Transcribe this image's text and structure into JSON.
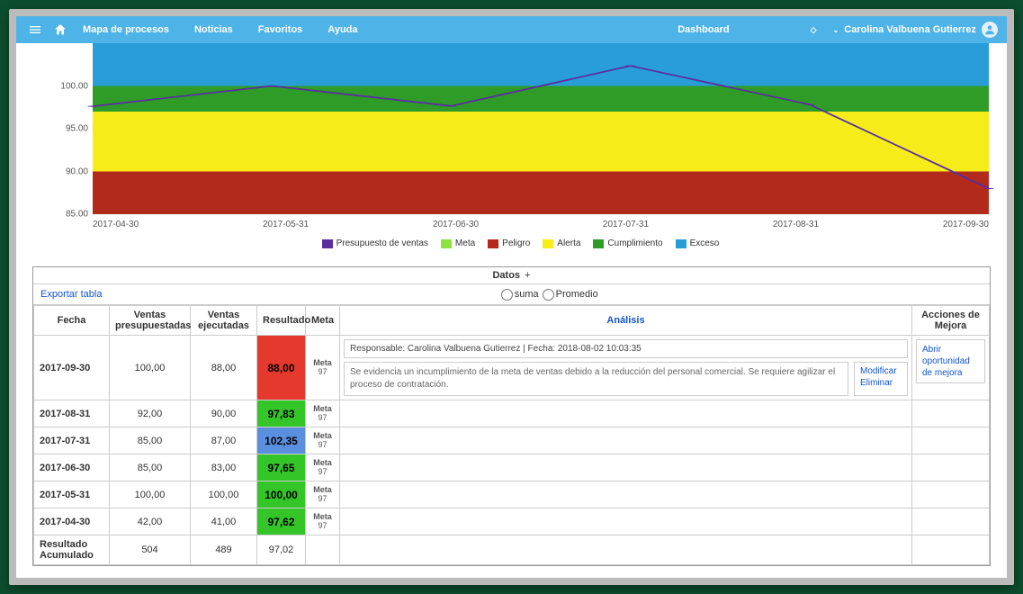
{
  "nav": {
    "links": [
      "Mapa de procesos",
      "Noticias",
      "Favoritos",
      "Ayuda"
    ],
    "select": "Dashboard",
    "user": "Carolina Valbuena Gutierrez"
  },
  "chart": {
    "type": "line-with-bands",
    "y": {
      "ticks": [
        85,
        90,
        95,
        100
      ],
      "min": 85,
      "max": 105
    },
    "x_labels": [
      "2017-04-30",
      "2017-05-31",
      "2017-06-30",
      "2017-07-31",
      "2017-08-31",
      "2017-09-30"
    ],
    "line": {
      "name": "Presupuesto de ventas",
      "color": "#5a2e9f",
      "values": [
        97.62,
        100.0,
        97.65,
        102.35,
        97.83,
        88.0
      ]
    },
    "bands": [
      {
        "name": "Peligro",
        "from": 85,
        "to": 90,
        "color": "#b22a1c"
      },
      {
        "name": "Alerta",
        "from": 90,
        "to": 97,
        "color": "#f6ec1a"
      },
      {
        "name": "Cumplimiento",
        "from": 97,
        "to": 100,
        "color": "#2e9c27"
      },
      {
        "name": "Exceso",
        "from": 100,
        "to": 105,
        "color": "#289dd8"
      }
    ],
    "legend": [
      {
        "label": "Presupuesto de ventas",
        "color": "#5a2e9f"
      },
      {
        "label": "Meta",
        "color": "#8ee340"
      },
      {
        "label": "Peligro",
        "color": "#b22a1c"
      },
      {
        "label": "Alerta",
        "color": "#f6ec1a"
      },
      {
        "label": "Cumplimiento",
        "color": "#2e9c27"
      },
      {
        "label": "Exceso",
        "color": "#289dd8"
      }
    ]
  },
  "table": {
    "title": "Datos",
    "export": "Exportar tabla",
    "radio_suma": "suma",
    "radio_prom": "Promedio",
    "columns": [
      "Fecha",
      "Ventas presupuestadas",
      "Ventas ejecutadas",
      "Resultado",
      "Meta",
      "Análisis",
      "Acciones de Mejora"
    ],
    "rows": [
      {
        "fecha": "2017-09-30",
        "vp": "100,00",
        "ve": "88,00",
        "res": "88,00",
        "res_bg": "#e6392d",
        "meta_label": "Meta",
        "meta_val": "97",
        "responsable": "Responsable: Carolina Valbuena Gutierrez | Fecha: 2018-08-02 10:03:35",
        "texto": "Se evidencia un incumplimiento de la meta de ventas debido a la reducción del personal comercial. Se requiere agilizar el proceso de contratación.",
        "mod": "Modificar",
        "elim": "Eliminar",
        "accion": "Abrir oportunidad de mejora"
      },
      {
        "fecha": "2017-08-31",
        "vp": "92,00",
        "ve": "90,00",
        "res": "97,83",
        "res_bg": "#34c628",
        "meta_label": "Meta",
        "meta_val": "97"
      },
      {
        "fecha": "2017-07-31",
        "vp": "85,00",
        "ve": "87,00",
        "res": "102,35",
        "res_bg": "#5a8fe0",
        "meta_label": "Meta",
        "meta_val": "97"
      },
      {
        "fecha": "2017-06-30",
        "vp": "85,00",
        "ve": "83,00",
        "res": "97,65",
        "res_bg": "#34c628",
        "meta_label": "Meta",
        "meta_val": "97"
      },
      {
        "fecha": "2017-05-31",
        "vp": "100,00",
        "ve": "100,00",
        "res": "100,00",
        "res_bg": "#34c628",
        "meta_label": "Meta",
        "meta_val": "97"
      },
      {
        "fecha": "2017-04-30",
        "vp": "42,00",
        "ve": "41,00",
        "res": "97,62",
        "res_bg": "#34c628",
        "meta_label": "Meta",
        "meta_val": "97"
      }
    ],
    "total_row": {
      "fecha": "Resultado Acumulado",
      "vp": "504",
      "ve": "489",
      "res": "97,02"
    }
  }
}
